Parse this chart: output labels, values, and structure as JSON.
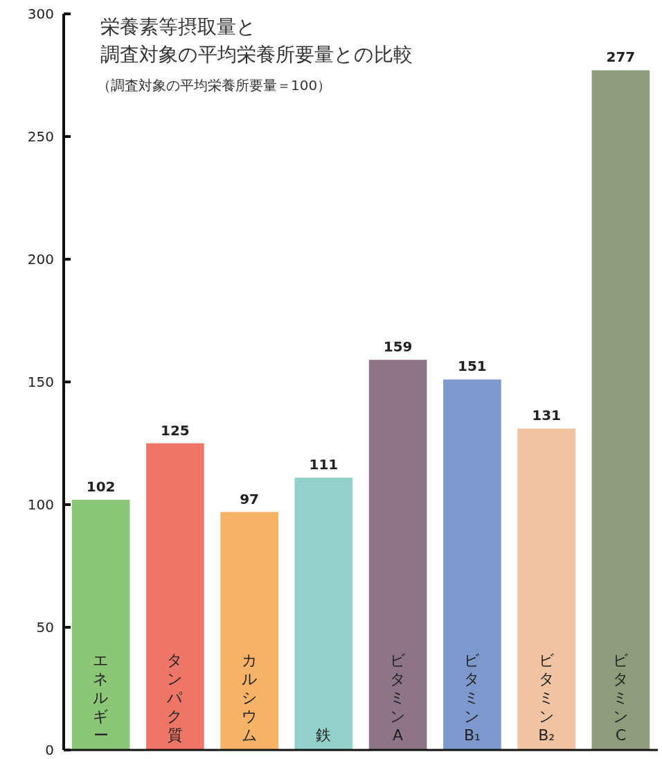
{
  "chart_data": {
    "type": "bar",
    "title": "栄養素等摂取量と",
    "subtitle": "調査対象の平均栄養所要量との比較",
    "annotations": [
      "（調査対象の平均栄養所要量＝100）"
    ],
    "categories": [
      "エネルギー",
      "タンパク質",
      "カルシウム",
      "鉄",
      "ビタミンA",
      "ビタミンB₁",
      "ビタミンB₂",
      "ビタミンC"
    ],
    "values": [
      102,
      125,
      97,
      111,
      159,
      151,
      131,
      277
    ],
    "colors": [
      "#8cc677",
      "#ee7668",
      "#f6b266",
      "#93d0ca",
      "#8d7585",
      "#7c98cd",
      "#f0c4a2",
      "#8f9c7c"
    ],
    "ylim": [
      0,
      300
    ],
    "yticks": [
      0,
      50,
      100,
      150,
      200,
      250,
      300
    ],
    "data_labels": true,
    "grid": false
  }
}
